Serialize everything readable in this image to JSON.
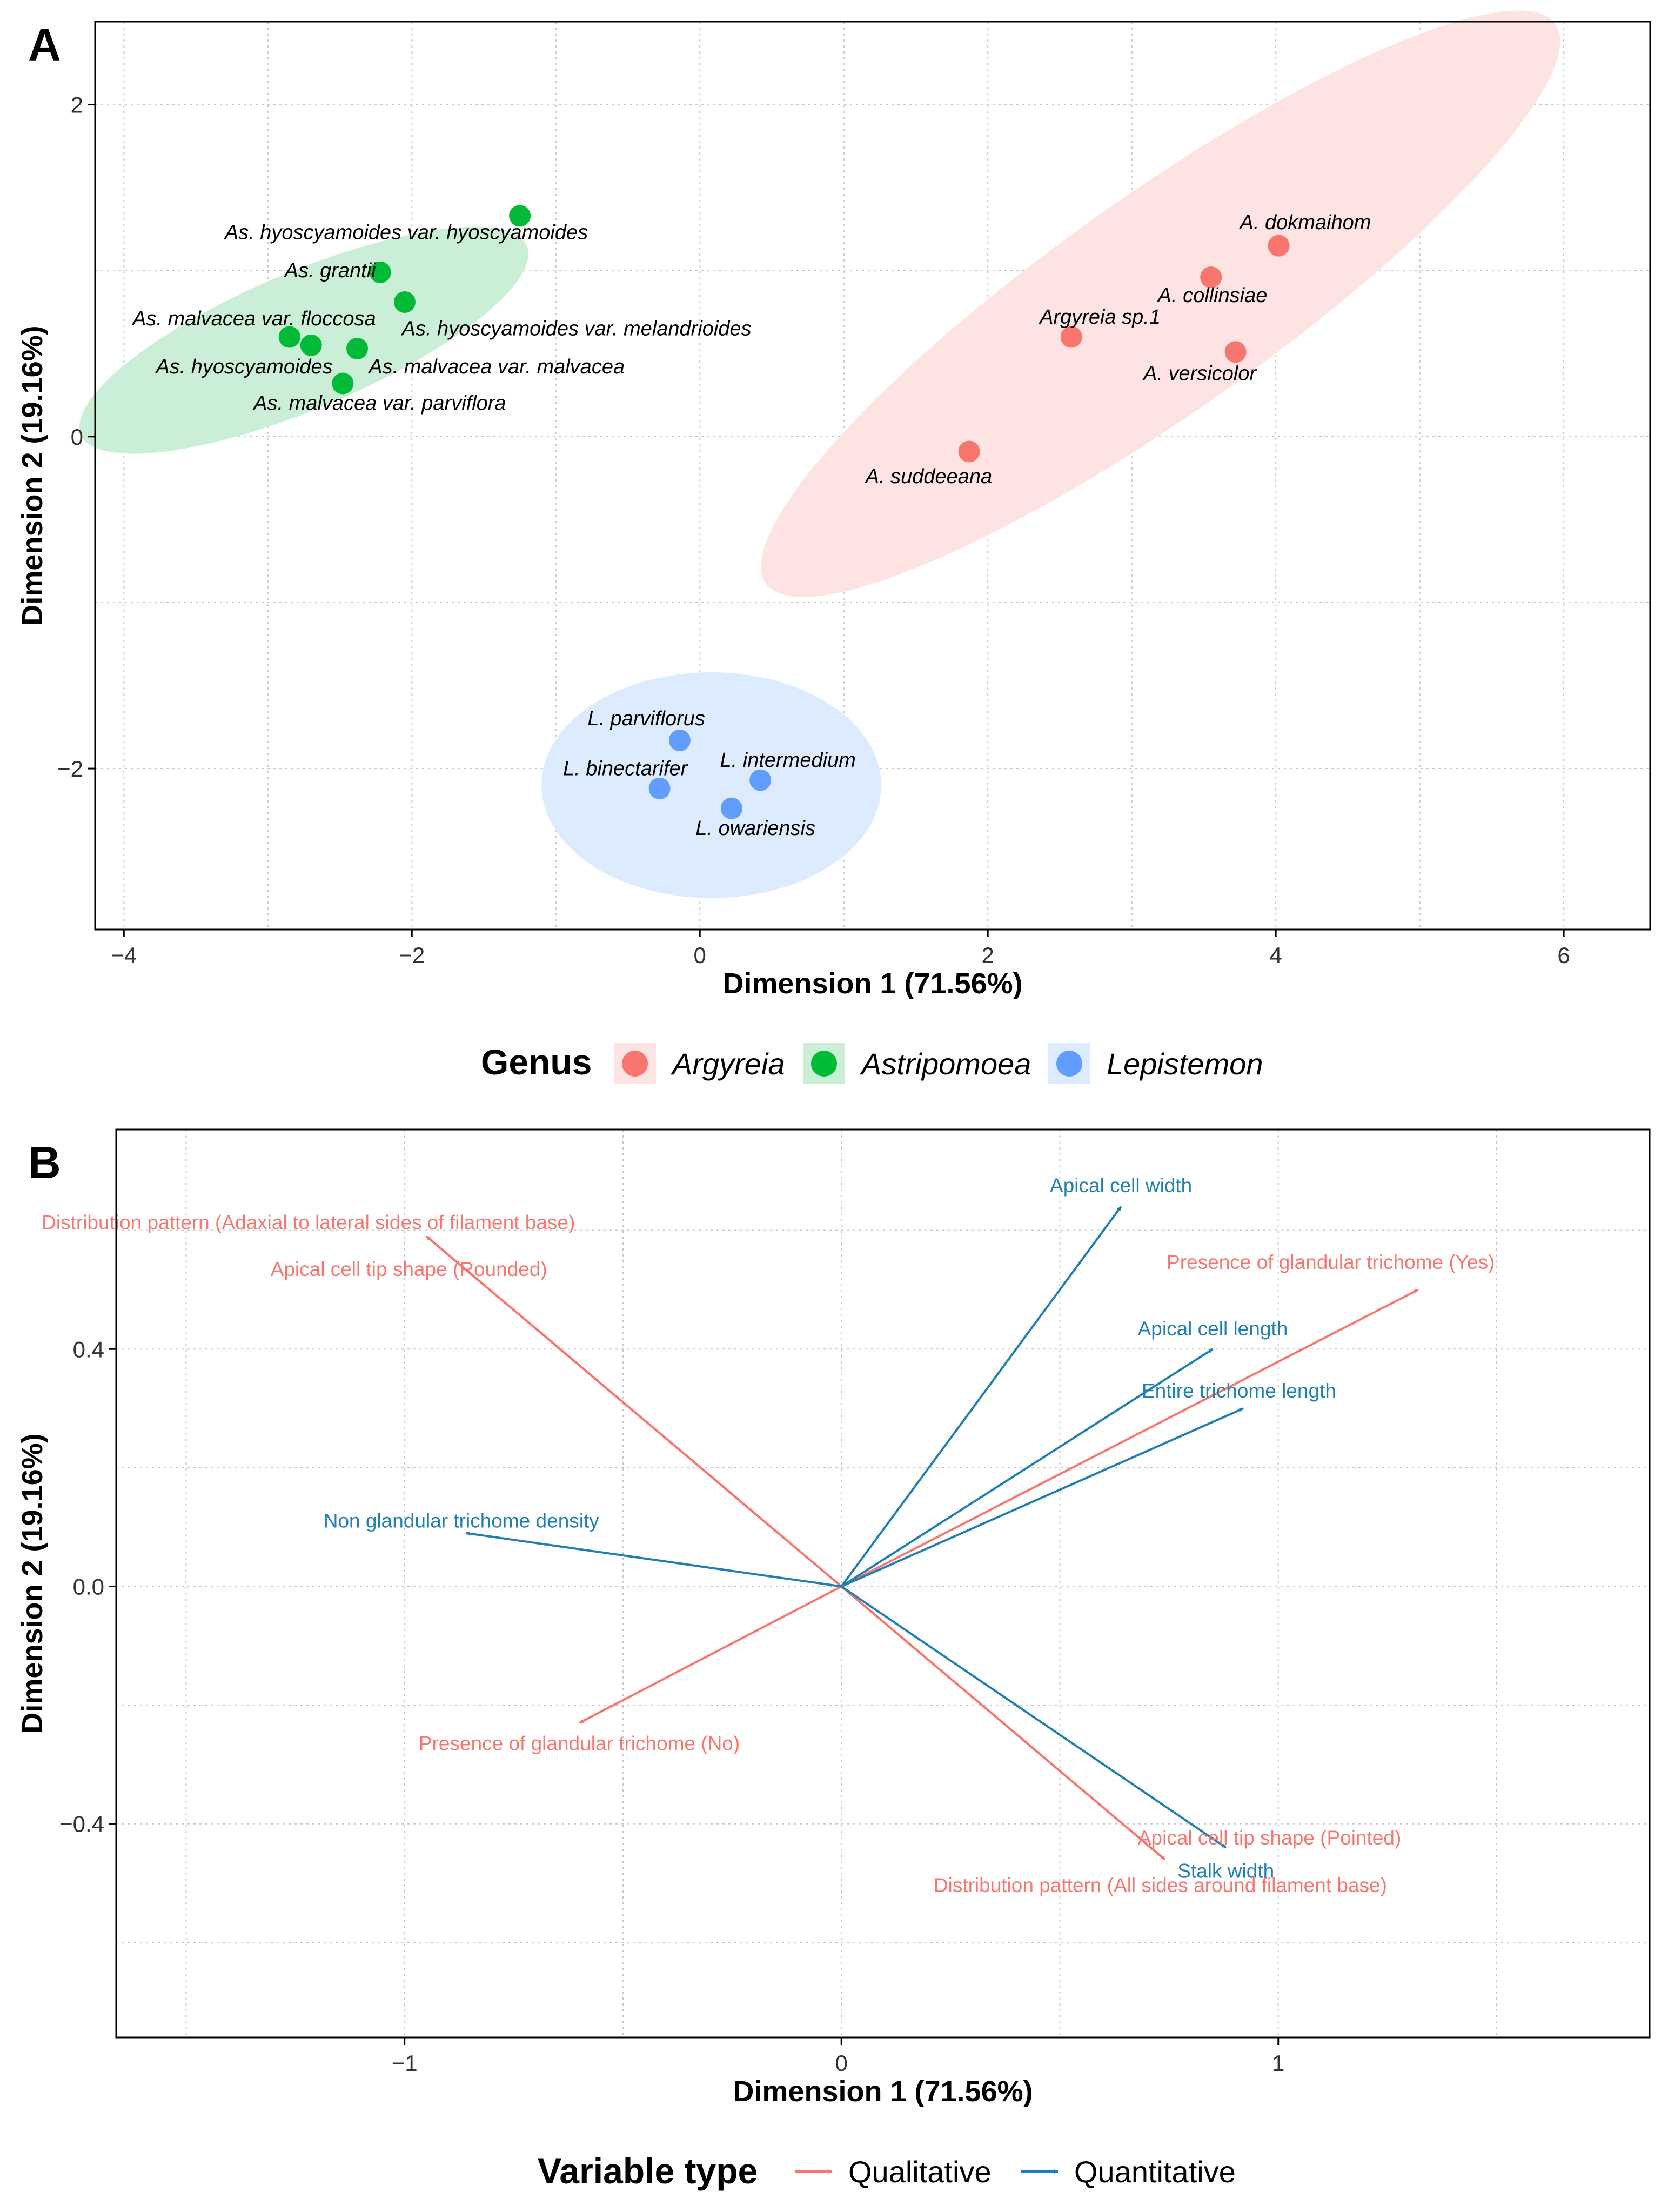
{
  "colors": {
    "argyreia": "#F8766D",
    "astripomoea": "#00BA38",
    "lepistemon": "#619CFF",
    "qualitative": "#F8766D",
    "quantitative": "#1F7FB4",
    "ellipse_argyreia": "#FDE4E2",
    "ellipse_astripomoea": "#CBEFD6",
    "ellipse_lepistemon": "#DCEBFD",
    "grid": "#C8C8C8",
    "axis": "#000000",
    "tick_text": "#333333"
  },
  "chart_data": [
    {
      "panel": "A",
      "type": "scatter",
      "xlabel": "Dimension 1 (71.56%)",
      "ylabel": "Dimension 2 (19.16%)",
      "xlim": [
        -4.2,
        6.6
      ],
      "ylim": [
        -2.97,
        2.5
      ],
      "xticks": [
        -4,
        -2,
        0,
        2,
        4,
        6
      ],
      "xtick_labels": [
        "−4",
        "−2",
        "0",
        "2",
        "4",
        "6"
      ],
      "yticks": [
        -2,
        0,
        2
      ],
      "ytick_labels": [
        "−2",
        "0",
        "2"
      ],
      "grid": true,
      "legend": {
        "title": "Genus",
        "position": "bottom",
        "entries": [
          {
            "key": "argyreia",
            "label": "Argyreia"
          },
          {
            "key": "astripomoea",
            "label": "Astripomoea"
          },
          {
            "key": "lepistemon",
            "label": "Lepistemon"
          }
        ]
      },
      "ellipses": [
        {
          "group": "astripomoea",
          "cx": -2.75,
          "cy": 0.58,
          "rx": 1.65,
          "ry": 0.42,
          "angle": 0.345
        },
        {
          "group": "argyreia",
          "cx": 3.2,
          "cy": 0.8,
          "rx": 3.22,
          "ry": 0.68,
          "angle": 0.545
        },
        {
          "group": "lepistemon",
          "cx": 0.08,
          "cy": -2.1,
          "rx": 1.18,
          "ry": 0.68,
          "angle": 0.0
        }
      ],
      "points": [
        {
          "group": "astripomoea",
          "x": -1.25,
          "y": 1.33,
          "label": "As. hyoscyamoides var. hyoscyamoides",
          "lx": -3.3,
          "ly": 1.19,
          "anchor": "start"
        },
        {
          "group": "astripomoea",
          "x": -2.22,
          "y": 0.99,
          "label": "As. grantii",
          "lx": -2.25,
          "ly": 0.96,
          "anchor": "end"
        },
        {
          "group": "astripomoea",
          "x": -2.05,
          "y": 0.81,
          "label": "As. hyoscyamoides var. melandrioides",
          "lx": -2.07,
          "ly": 0.61,
          "anchor": "start"
        },
        {
          "group": "astripomoea",
          "x": -2.85,
          "y": 0.6,
          "label": "As. malvacea var. floccosa",
          "lx": -2.25,
          "ly": 0.67,
          "anchor": "end"
        },
        {
          "group": "astripomoea",
          "x": -2.7,
          "y": 0.55,
          "label": "As. hyoscyamoides",
          "lx": -2.55,
          "ly": 0.38,
          "anchor": "end"
        },
        {
          "group": "astripomoea",
          "x": -2.38,
          "y": 0.53,
          "label": "As. malvacea var. malvacea",
          "lx": -2.3,
          "ly": 0.38,
          "anchor": "start"
        },
        {
          "group": "astripomoea",
          "x": -2.48,
          "y": 0.32,
          "label": "As. malvacea var. parviflora",
          "lx": -3.1,
          "ly": 0.16,
          "anchor": "start"
        },
        {
          "group": "argyreia",
          "x": 4.02,
          "y": 1.15,
          "label": "A. dokmaihom",
          "lx": 3.75,
          "ly": 1.25,
          "anchor": "start"
        },
        {
          "group": "argyreia",
          "x": 3.55,
          "y": 0.96,
          "label": "A. collinsiae",
          "lx": 3.18,
          "ly": 0.81,
          "anchor": "start"
        },
        {
          "group": "argyreia",
          "x": 2.58,
          "y": 0.6,
          "label": "Argyreia sp.1",
          "lx": 2.36,
          "ly": 0.68,
          "anchor": "start"
        },
        {
          "group": "argyreia",
          "x": 3.72,
          "y": 0.51,
          "label": "A. versicolor",
          "lx": 3.08,
          "ly": 0.34,
          "anchor": "start"
        },
        {
          "group": "argyreia",
          "x": 1.87,
          "y": -0.09,
          "label": "A. suddeeana",
          "lx": 1.15,
          "ly": -0.28,
          "anchor": "start"
        },
        {
          "group": "lepistemon",
          "x": -0.14,
          "y": -1.83,
          "label": "L. parviflorus",
          "lx": -0.78,
          "ly": -1.74,
          "anchor": "start"
        },
        {
          "group": "lepistemon",
          "x": 0.42,
          "y": -2.07,
          "label": "L. intermedium",
          "lx": 0.14,
          "ly": -1.99,
          "anchor": "start"
        },
        {
          "group": "lepistemon",
          "x": -0.28,
          "y": -2.12,
          "label": "L. binectarifer",
          "lx": -0.95,
          "ly": -2.04,
          "anchor": "start"
        },
        {
          "group": "lepistemon",
          "x": 0.22,
          "y": -2.24,
          "label": "L. owariensis",
          "lx": -0.03,
          "ly": -2.4,
          "anchor": "start"
        }
      ]
    },
    {
      "panel": "B",
      "type": "biplot-arrows",
      "xlabel": "Dimension 1 (71.56%)",
      "ylabel": "Dimension 2 (19.16%)",
      "xlim": [
        -1.66,
        1.85
      ],
      "ylim": [
        -0.76,
        0.77
      ],
      "xticks": [
        -1,
        0,
        1
      ],
      "xtick_labels": [
        "−1",
        "0",
        "1"
      ],
      "yticks": [
        -0.4,
        0.0,
        0.4
      ],
      "ytick_labels": [
        "−0.4",
        "0.0",
        "0.4"
      ],
      "grid": true,
      "legend": {
        "title": "Variable type",
        "position": "bottom",
        "entries": [
          {
            "key": "qualitative",
            "label": "Qualitative"
          },
          {
            "key": "quantitative",
            "label": "Quantitative"
          }
        ]
      },
      "arrows": [
        {
          "type": "qualitative",
          "x": -0.95,
          "y": 0.59,
          "label": "Distribution pattern (Adaxial to lateral sides of filament base)",
          "lx": -1.22,
          "ly": 0.614
        },
        {
          "type": "qualitative",
          "x": -0.95,
          "y": 0.59,
          "label": "Apical cell tip shape (Rounded)",
          "lx": -0.99,
          "ly": 0.535
        },
        {
          "type": "qualitative",
          "x": 1.32,
          "y": 0.5,
          "label": "Presence of glandular trichome (Yes)",
          "lx": 1.12,
          "ly": 0.547
        },
        {
          "type": "qualitative",
          "x": -0.6,
          "y": -0.23,
          "label": "Presence of glandular trichome (No)",
          "lx": -0.6,
          "ly": -0.264
        },
        {
          "type": "qualitative",
          "x": 0.74,
          "y": -0.46,
          "label": "Apical cell tip shape (Pointed)",
          "lx": 0.98,
          "ly": -0.423
        },
        {
          "type": "qualitative",
          "x": 0.74,
          "y": -0.46,
          "label": "Distribution pattern (All sides around filament base)",
          "lx": 0.73,
          "ly": -0.503
        },
        {
          "type": "quantitative",
          "x": 0.64,
          "y": 0.64,
          "label": "Apical cell width",
          "lx": 0.64,
          "ly": 0.676
        },
        {
          "type": "quantitative",
          "x": 0.85,
          "y": 0.4,
          "label": "Apical cell length",
          "lx": 0.85,
          "ly": 0.435
        },
        {
          "type": "quantitative",
          "x": 0.92,
          "y": 0.3,
          "label": "Entire trichome length",
          "lx": 0.91,
          "ly": 0.33
        },
        {
          "type": "quantitative",
          "x": -0.86,
          "y": 0.09,
          "label": "Non glandular trichome density",
          "lx": -0.87,
          "ly": 0.111
        },
        {
          "type": "quantitative",
          "x": 0.88,
          "y": -0.44,
          "label": "Stalk width",
          "lx": 0.88,
          "ly": -0.479
        }
      ]
    }
  ],
  "panels": {
    "a_tag": "A",
    "b_tag": "B"
  }
}
